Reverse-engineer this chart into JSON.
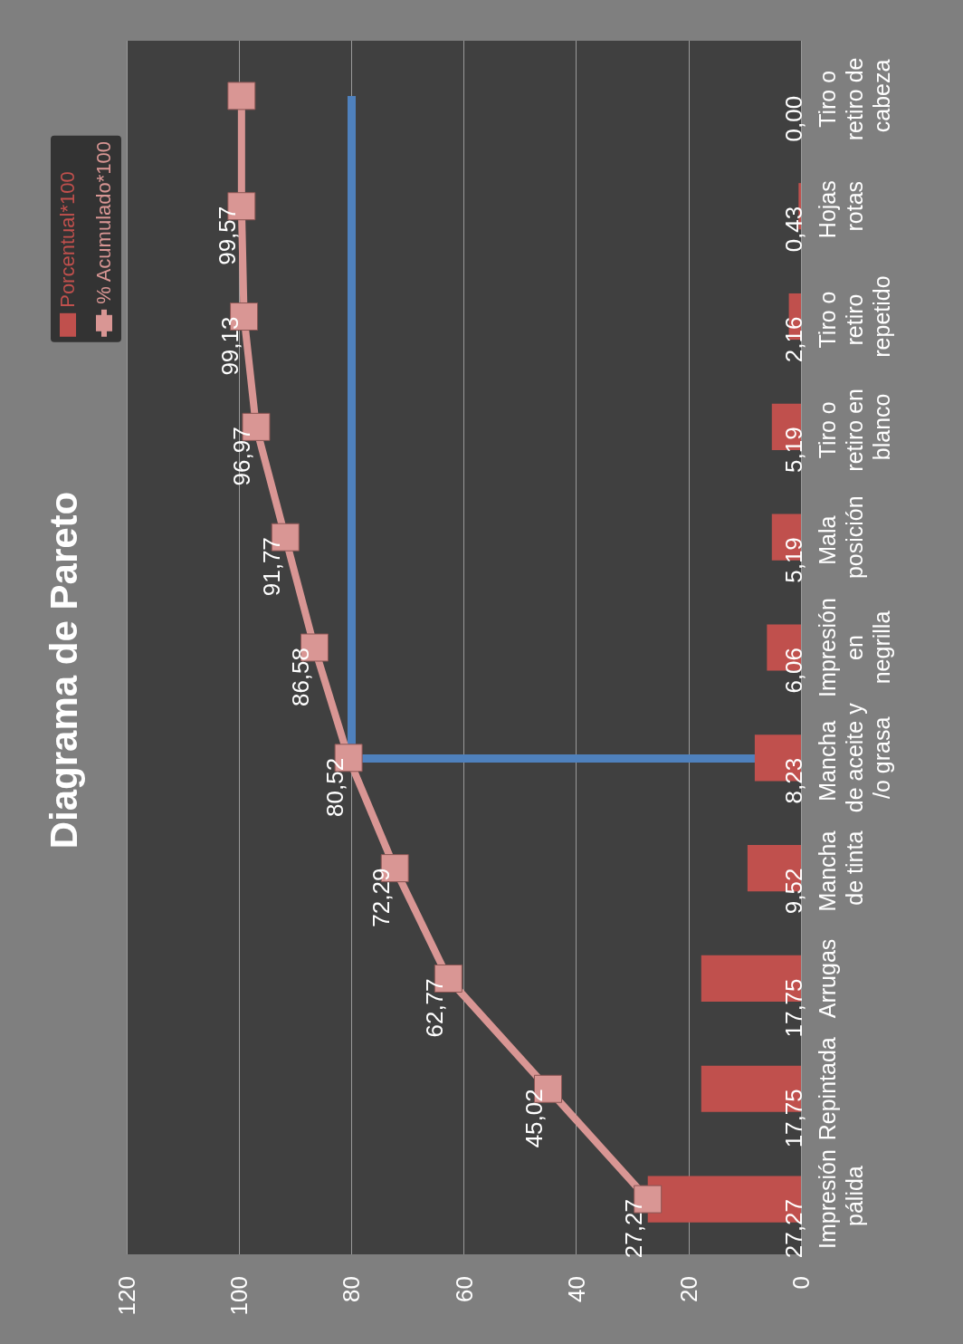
{
  "chart_data": {
    "type": "bar",
    "title": "Diagrama de Pareto",
    "orientation": "horizontal",
    "categories": [
      "Tiro o retiro de cabeza",
      "Hojas rotas",
      "Tiro o retiro repetido",
      "Tiro o retiro en blanco",
      "Mala posición",
      "Impresión en negrilla",
      "Mancha de aceite y/o grasa",
      "Mancha de tinta",
      "Arrugas",
      "Repintada",
      "Impresión pálida"
    ],
    "series": [
      {
        "name": "Porcentual*100",
        "color": "#c0504d",
        "values": [
          0.0,
          0.43,
          2.16,
          5.19,
          5.19,
          6.06,
          8.23,
          9.52,
          17.75,
          17.75,
          27.27
        ],
        "value_labels": [
          "0,00",
          "0,43",
          "2,16",
          "5,19",
          "5,19",
          "6,06",
          "8,23",
          "9,52",
          "17,75",
          "17,75",
          "27,27"
        ]
      },
      {
        "name": "% Acumulado*100",
        "type": "line",
        "color": "#d99694",
        "values": [
          99.57,
          99.57,
          99.13,
          96.97,
          91.77,
          86.58,
          80.52,
          72.29,
          62.77,
          45.02,
          27.27
        ],
        "value_labels": [
          null,
          "99,57",
          "99,13",
          "96,97",
          "91,77",
          "86,58",
          "80,52",
          "72,29",
          "62,77",
          "45,02",
          "27,27"
        ]
      }
    ],
    "xlim": [
      120,
      0
    ],
    "xticks": [
      120,
      100,
      80,
      60,
      40,
      20,
      0
    ],
    "grid": "x",
    "legend": "top left",
    "marker": "square",
    "ref_lines": [
      {
        "axis": "y",
        "value": "Mancha de aceite y/o grasa",
        "color": "#4f81bd"
      },
      {
        "axis": "x",
        "value": 80,
        "color": "#4f81bd"
      }
    ]
  }
}
